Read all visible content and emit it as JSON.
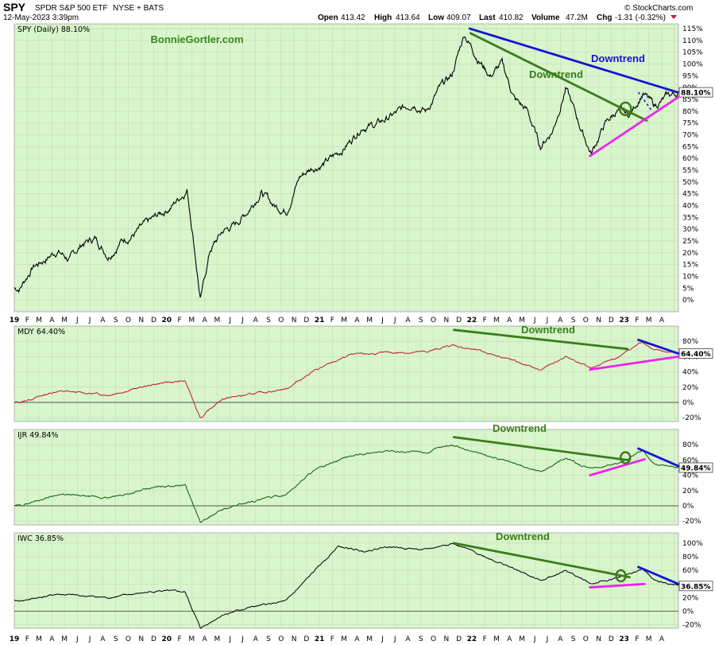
{
  "header": {
    "symbol": "SPY",
    "name": "SPDR S&P 500 ETF",
    "exchange": "NYSE + BATS",
    "date": "12-May-2023 3:39pm",
    "copyright": "© StockCharts.com",
    "quote": {
      "open_label": "Open",
      "open": "413.42",
      "high_label": "High",
      "high": "413.64",
      "low_label": "Low",
      "low": "409.07",
      "last_label": "Last",
      "last": "410.82",
      "volume_label": "Volume",
      "volume": "47.2M",
      "chg_label": "Chg",
      "chg": "-1.31 (-0.32%)"
    }
  },
  "colors": {
    "plot_bg": "#d8f5cc",
    "grid": "#c3dcb5",
    "spy_line": "#000000",
    "mdy_line": "#c0183a",
    "ijr_line": "#0d5e0d",
    "iwc_line": "#000000",
    "trend_green": "#3a7d1c",
    "trend_blue": "#1414d4",
    "trend_magenta": "#ee22ee",
    "watermark": "#3a8a1a"
  },
  "x_axis": {
    "years": [
      "19",
      "20",
      "21",
      "22",
      "23"
    ],
    "month_letters": [
      "F",
      "M",
      "A",
      "M",
      "J",
      "J",
      "A",
      "S",
      "O",
      "N",
      "D"
    ],
    "last_year_months": [
      "F",
      "M",
      "A",
      "M"
    ]
  },
  "chart_data": [
    {
      "type": "line",
      "panel": "spy",
      "label": "SPY (Daily) 88.10%",
      "watermark": "BonnieGortler.com",
      "last_value_label": "88.10%",
      "units": "percent change since start",
      "ylim": [
        -5,
        117
      ],
      "yticks": [
        0,
        5,
        10,
        15,
        20,
        25,
        30,
        35,
        40,
        45,
        50,
        55,
        60,
        65,
        70,
        75,
        80,
        85,
        90,
        95,
        100,
        105,
        110,
        115
      ],
      "series": [
        {
          "name": "SPY (Daily)",
          "points": [
            [
              "2019-01",
              5
            ],
            [
              "2019-02",
              14
            ],
            [
              "2019-03",
              17
            ],
            [
              "2019-04",
              21
            ],
            [
              "2019-05",
              17
            ],
            [
              "2019-06",
              24
            ],
            [
              "2019-07",
              26
            ],
            [
              "2019-08",
              19
            ],
            [
              "2019-09",
              25
            ],
            [
              "2019-10",
              28
            ],
            [
              "2019-11",
              32
            ],
            [
              "2019-12",
              36
            ],
            [
              "2020-01",
              40
            ],
            [
              "2020-02",
              46
            ],
            [
              "2020-02-20",
              47
            ],
            [
              "2020-03-05",
              28
            ],
            [
              "2020-03-23",
              0
            ],
            [
              "2020-04",
              21
            ],
            [
              "2020-05",
              29
            ],
            [
              "2020-06",
              32
            ],
            [
              "2020-07",
              38
            ],
            [
              "2020-08",
              46
            ],
            [
              "2020-09",
              40
            ],
            [
              "2020-10",
              38
            ],
            [
              "2020-11",
              52
            ],
            [
              "2020-12",
              56
            ],
            [
              "2021-01",
              58
            ],
            [
              "2021-02",
              62
            ],
            [
              "2021-03",
              67
            ],
            [
              "2021-04",
              74
            ],
            [
              "2021-05",
              74
            ],
            [
              "2021-06",
              77
            ],
            [
              "2021-07",
              80
            ],
            [
              "2021-08",
              84
            ],
            [
              "2021-09",
              80
            ],
            [
              "2021-10",
              89
            ],
            [
              "2021-11",
              95
            ],
            [
              "2021-12",
              113
            ],
            [
              "2022-01",
              103
            ],
            [
              "2022-02",
              95
            ],
            [
              "2022-03",
              100
            ],
            [
              "2022-04",
              85
            ],
            [
              "2022-05",
              80
            ],
            [
              "2022-06",
              65
            ],
            [
              "2022-07",
              72
            ],
            [
              "2022-08",
              90
            ],
            [
              "2022-09",
              75
            ],
            [
              "2022-10",
              62
            ],
            [
              "2022-11",
              74
            ],
            [
              "2022-12",
              80
            ],
            [
              "2023-01",
              78
            ],
            [
              "2023-02",
              88
            ],
            [
              "2023-03",
              82
            ],
            [
              "2023-04",
              86
            ],
            [
              "2023-05",
              88
            ]
          ]
        }
      ],
      "annotations": [
        {
          "text": "Downtrend",
          "color": "#1414d4"
        },
        {
          "text": "Downtrend",
          "color": "#3a7d1c"
        }
      ]
    },
    {
      "type": "line",
      "panel": "mdy",
      "label": "MDY 64.40%",
      "last_value_label": "64.40%",
      "ylim": [
        -25,
        100
      ],
      "yticks": [
        -20,
        0,
        20,
        40,
        60,
        80
      ],
      "series": [
        {
          "name": "MDY",
          "points": [
            [
              "2019-01",
              0
            ],
            [
              "2019-04",
              15
            ],
            [
              "2019-08",
              10
            ],
            [
              "2019-12",
              25
            ],
            [
              "2020-02",
              28
            ],
            [
              "2020-03-23",
              -20
            ],
            [
              "2020-05",
              5
            ],
            [
              "2020-07",
              10
            ],
            [
              "2020-10",
              18
            ],
            [
              "2020-12",
              40
            ],
            [
              "2021-03",
              62
            ],
            [
              "2021-06",
              65
            ],
            [
              "2021-09",
              66
            ],
            [
              "2021-11",
              75
            ],
            [
              "2022-01",
              68
            ],
            [
              "2022-03",
              60
            ],
            [
              "2022-06",
              42
            ],
            [
              "2022-08",
              60
            ],
            [
              "2022-10",
              45
            ],
            [
              "2022-12",
              58
            ],
            [
              "2023-02",
              80
            ],
            [
              "2023-03",
              68
            ],
            [
              "2023-05",
              64
            ]
          ]
        }
      ],
      "annotations": [
        {
          "text": "Downtrend",
          "color": "#3a7d1c"
        }
      ]
    },
    {
      "type": "line",
      "panel": "ijr",
      "label": "IJR 49.84%",
      "last_value_label": "49.84%",
      "ylim": [
        -25,
        100
      ],
      "yticks": [
        -20,
        0,
        20,
        40,
        60,
        80
      ],
      "series": [
        {
          "name": "IJR",
          "points": [
            [
              "2019-01",
              0
            ],
            [
              "2019-04",
              15
            ],
            [
              "2019-08",
              10
            ],
            [
              "2019-12",
              25
            ],
            [
              "2020-02",
              28
            ],
            [
              "2020-03-23",
              -22
            ],
            [
              "2020-05",
              -5
            ],
            [
              "2020-07",
              5
            ],
            [
              "2020-10",
              15
            ],
            [
              "2020-12",
              45
            ],
            [
              "2021-03",
              65
            ],
            [
              "2021-06",
              72
            ],
            [
              "2021-09",
              70
            ],
            [
              "2021-11",
              80
            ],
            [
              "2022-01",
              70
            ],
            [
              "2022-03",
              60
            ],
            [
              "2022-06",
              45
            ],
            [
              "2022-08",
              62
            ],
            [
              "2022-10",
              48
            ],
            [
              "2022-12",
              55
            ],
            [
              "2023-02",
              72
            ],
            [
              "2023-03",
              55
            ],
            [
              "2023-05",
              50
            ]
          ]
        }
      ],
      "annotations": [
        {
          "text": "Downtrend",
          "color": "#3a7d1c"
        }
      ]
    },
    {
      "type": "line",
      "panel": "iwc",
      "label": "IWC 36.85%",
      "last_value_label": "36.85%",
      "ylim": [
        -25,
        115
      ],
      "yticks": [
        -20,
        0,
        20,
        40,
        60,
        80,
        100
      ],
      "series": [
        {
          "name": "IWC",
          "points": [
            [
              "2019-01",
              15
            ],
            [
              "2019-04",
              25
            ],
            [
              "2019-08",
              20
            ],
            [
              "2019-12",
              30
            ],
            [
              "2020-02",
              28
            ],
            [
              "2020-03-23",
              -25
            ],
            [
              "2020-05",
              -5
            ],
            [
              "2020-07",
              5
            ],
            [
              "2020-10",
              15
            ],
            [
              "2020-12",
              55
            ],
            [
              "2021-02",
              95
            ],
            [
              "2021-04",
              88
            ],
            [
              "2021-06",
              95
            ],
            [
              "2021-09",
              90
            ],
            [
              "2021-11",
              100
            ],
            [
              "2022-01",
              85
            ],
            [
              "2022-03",
              70
            ],
            [
              "2022-06",
              45
            ],
            [
              "2022-08",
              60
            ],
            [
              "2022-10",
              40
            ],
            [
              "2022-12",
              48
            ],
            [
              "2023-02",
              62
            ],
            [
              "2023-03",
              45
            ],
            [
              "2023-05",
              37
            ]
          ]
        }
      ],
      "annotations": [
        {
          "text": "Downtrend",
          "color": "#3a7d1c"
        }
      ]
    }
  ]
}
